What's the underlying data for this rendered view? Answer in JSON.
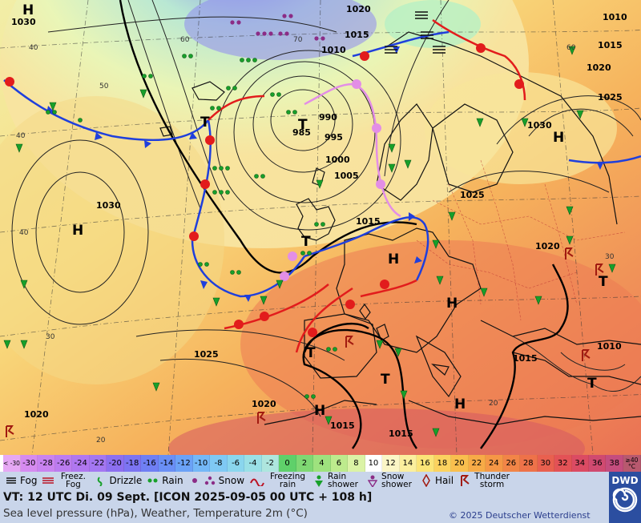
{
  "map": {
    "isobar_labels": [
      {
        "text": "1030"
      },
      {
        "text": "1020"
      },
      {
        "text": "1015"
      },
      {
        "text": "1010"
      },
      {
        "text": "1010"
      },
      {
        "text": "1015"
      },
      {
        "text": "1020"
      },
      {
        "text": "1025"
      },
      {
        "text": "985"
      },
      {
        "text": "990"
      },
      {
        "text": "995"
      },
      {
        "text": "1000"
      },
      {
        "text": "1005"
      },
      {
        "text": "1015"
      },
      {
        "text": "1030"
      },
      {
        "text": "1025"
      },
      {
        "text": "1030"
      },
      {
        "text": "1025"
      },
      {
        "text": "1020"
      },
      {
        "text": "1015"
      },
      {
        "text": "1010"
      },
      {
        "text": "1020"
      },
      {
        "text": "1020"
      },
      {
        "text": "1015"
      },
      {
        "text": "1015"
      }
    ],
    "grid_labels": [
      "40",
      "50",
      "60",
      "60",
      "70",
      "40",
      "30",
      "20",
      "40",
      "30",
      "20"
    ],
    "pressure_centers": [
      "H",
      "H",
      "H",
      "H",
      "H",
      "H",
      "H",
      "T",
      "T",
      "T",
      "T",
      "T",
      "T",
      "T"
    ],
    "colors": {
      "sea_cold": "#a7e0e6",
      "land_warm": "#f5b06e",
      "front_cold": "#1f3fdc",
      "front_warm": "#e21c1c",
      "front_occluded": "#e38ee6"
    }
  },
  "colorbar": {
    "low_end": "< -30",
    "high_end": "≥40 °C",
    "steps": [
      {
        "v": "-30",
        "c": "#d68bf0"
      },
      {
        "v": "-28",
        "c": "#c983f0"
      },
      {
        "v": "-26",
        "c": "#bc7cf0"
      },
      {
        "v": "-24",
        "c": "#b077f0"
      },
      {
        "v": "-22",
        "c": "#a477f2"
      },
      {
        "v": "-20",
        "c": "#8c6ff0"
      },
      {
        "v": "-18",
        "c": "#7c74f2"
      },
      {
        "v": "-16",
        "c": "#6f7ff4"
      },
      {
        "v": "-14",
        "c": "#6a8ff6"
      },
      {
        "v": "-12",
        "c": "#6ba2f7"
      },
      {
        "v": "-10",
        "c": "#74b8f7"
      },
      {
        "v": "-8",
        "c": "#7fc9f4"
      },
      {
        "v": "-6",
        "c": "#8ad6ee"
      },
      {
        "v": "-4",
        "c": "#9ae0e6"
      },
      {
        "v": "-2",
        "c": "#aee6de"
      },
      {
        "v": "0",
        "c": "#5fd06a"
      },
      {
        "v": "2",
        "c": "#7fd873"
      },
      {
        "v": "4",
        "c": "#9ee27e"
      },
      {
        "v": "6",
        "c": "#bdeb8d"
      },
      {
        "v": "8",
        "c": "#dbf3a6"
      },
      {
        "v": "10",
        "c": "#ffffff"
      },
      {
        "v": "12",
        "c": "#fbf6c6"
      },
      {
        "v": "14",
        "c": "#fbef9e"
      },
      {
        "v": "16",
        "c": "#fbe477"
      },
      {
        "v": "18",
        "c": "#fbd25f"
      },
      {
        "v": "20",
        "c": "#f9bf4e"
      },
      {
        "v": "22",
        "c": "#f7ab47"
      },
      {
        "v": "24",
        "c": "#f59746"
      },
      {
        "v": "26",
        "c": "#f28547"
      },
      {
        "v": "28",
        "c": "#ee7249"
      },
      {
        "v": "30",
        "c": "#e9604f"
      },
      {
        "v": "32",
        "c": "#e35256"
      },
      {
        "v": "34",
        "c": "#db4b63"
      },
      {
        "v": "36",
        "c": "#d04a70"
      },
      {
        "v": "38",
        "c": "#c44d7e"
      }
    ]
  },
  "legend": {
    "fog": "Fog",
    "freezing_fog": "Freez. Fog",
    "drizzle": "Drizzle",
    "rain": "Rain",
    "snow": "Snow",
    "freezing_rain": "Freezing rain",
    "rain_shower": "Rain shower",
    "snow_shower": "Snow shower",
    "hail": "Hail",
    "thunderstorm": "Thunder storm"
  },
  "info": {
    "valid_time": "VT: 12 UTC Di.  09 Sept. [ICON 2025-09-05  00 UTC + 108 h]",
    "subtitle": "Sea level pressure (hPa), Weather, Temperature 2m (°C)",
    "copyright": "© 2025 Deutscher Wetterdienst",
    "logo": "DWD"
  }
}
